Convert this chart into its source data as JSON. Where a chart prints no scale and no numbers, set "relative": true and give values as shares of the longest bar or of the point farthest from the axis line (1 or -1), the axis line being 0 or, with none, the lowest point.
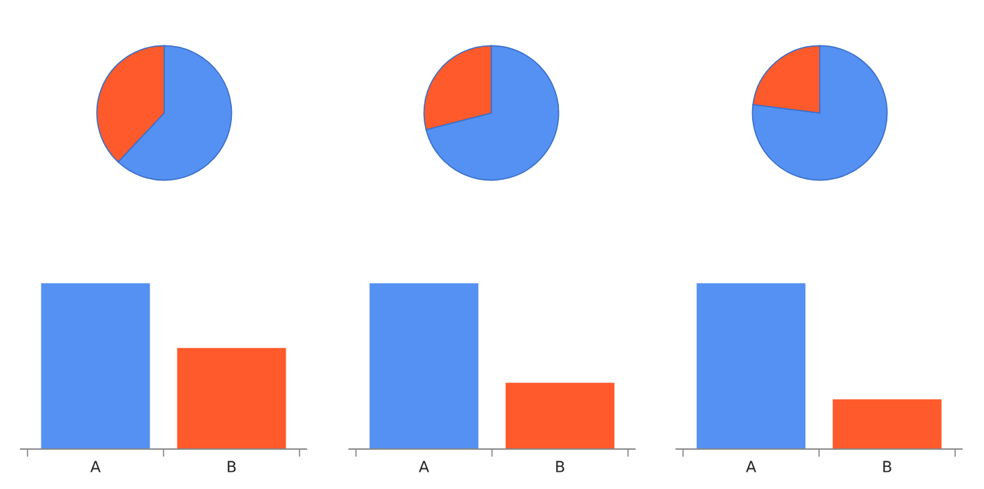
{
  "chart_data": [
    {
      "type": "pie",
      "categories": [
        null,
        null
      ],
      "values": [
        62,
        38
      ],
      "colors": [
        "#5591f2",
        "#ff5a2b"
      ]
    },
    {
      "type": "pie",
      "categories": [
        null,
        null
      ],
      "values": [
        71,
        29
      ],
      "colors": [
        "#5591f2",
        "#ff5a2b"
      ]
    },
    {
      "type": "pie",
      "categories": [
        null,
        null
      ],
      "values": [
        77,
        23
      ],
      "colors": [
        "#5591f2",
        "#ff5a2b"
      ]
    },
    {
      "type": "bar",
      "relative": true,
      "categories": [
        "A",
        "B"
      ],
      "values": [
        1,
        0.61
      ],
      "colors": [
        "#5591f2",
        "#ff5a2b"
      ]
    },
    {
      "type": "bar",
      "relative": true,
      "categories": [
        "A",
        "B"
      ],
      "values": [
        1,
        0.4
      ],
      "colors": [
        "#5591f2",
        "#ff5a2b"
      ]
    },
    {
      "type": "bar",
      "relative": true,
      "categories": [
        "A",
        "B"
      ],
      "values": [
        1,
        0.3
      ],
      "colors": [
        "#5591f2",
        "#ff5a2b"
      ]
    }
  ]
}
